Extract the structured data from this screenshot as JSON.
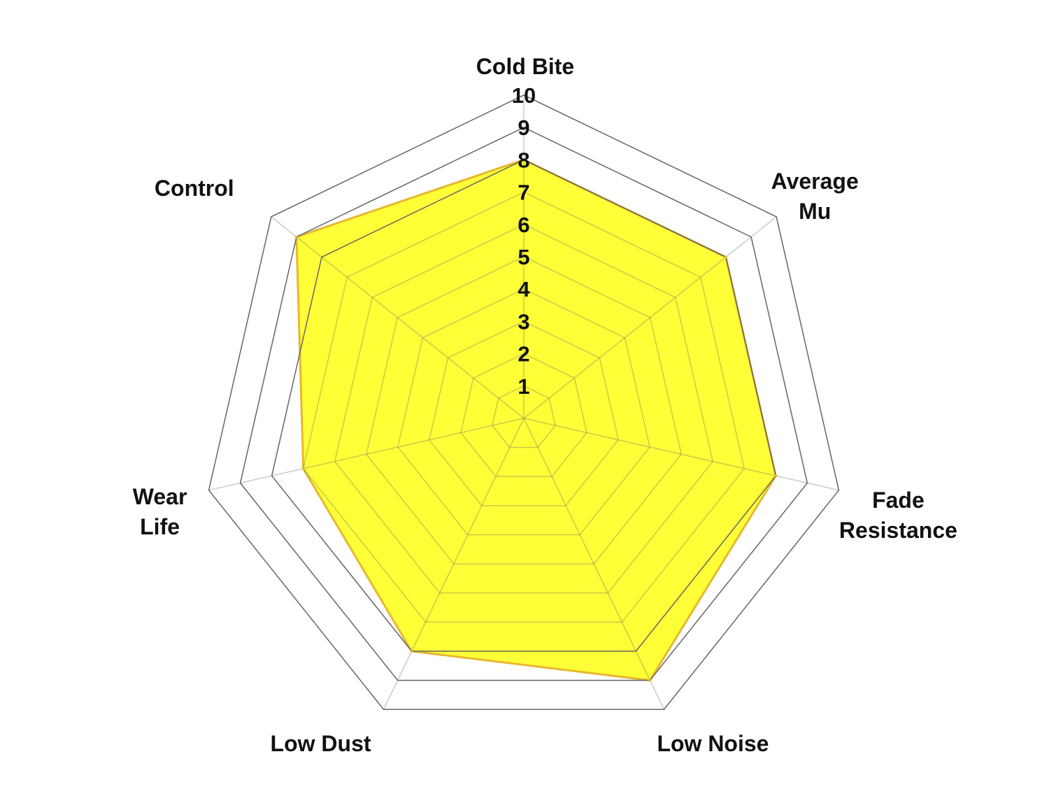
{
  "chart_data": {
    "type": "radar",
    "categories": [
      "Cold Bite",
      "Average Mu",
      "Fade Resistance",
      "Low Noise",
      "Low Dust",
      "Wear Life",
      "Control"
    ],
    "category_label_lines": [
      [
        "Cold Bite"
      ],
      [
        "Average",
        "Mu"
      ],
      [
        "Fade",
        "Resistance"
      ],
      [
        "Low Noise"
      ],
      [
        "Low Dust"
      ],
      [
        "Wear",
        "Life"
      ],
      [
        "Control"
      ]
    ],
    "values": [
      8,
      8,
      8,
      9,
      8,
      7,
      9
    ],
    "rlim": [
      0,
      10
    ],
    "ticks": [
      "1",
      "2",
      "3",
      "4",
      "5",
      "6",
      "7",
      "8",
      "9",
      "10"
    ],
    "grid": true,
    "legend": "none",
    "colors": {
      "fill": "#ffff00",
      "stroke": "#e6b82e",
      "grid": "#666666"
    }
  }
}
